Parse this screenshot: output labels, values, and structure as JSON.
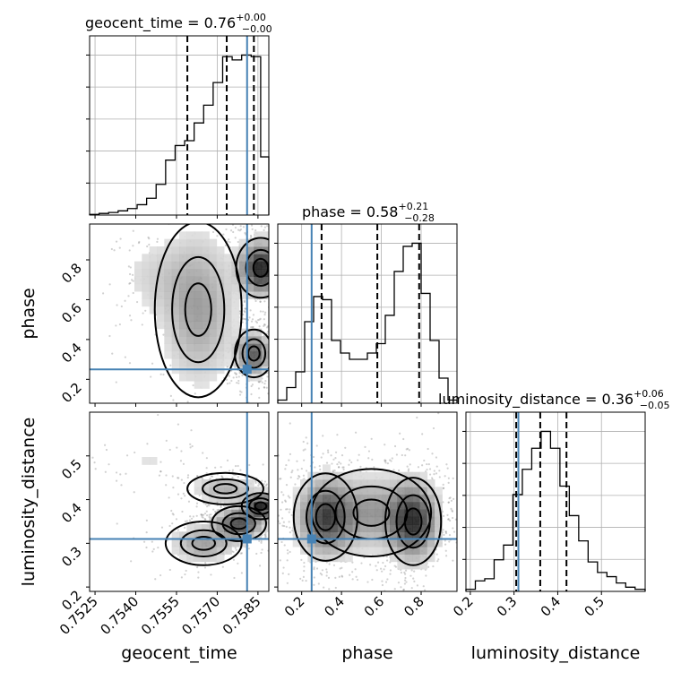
{
  "chart_data": {
    "type": "corner",
    "parameters": [
      "geocent_time",
      "phase",
      "luminosity_distance"
    ],
    "truth": {
      "geocent_time": 0.7581,
      "phase": 0.25,
      "luminosity_distance": 0.31
    },
    "titles": [
      {
        "param": "geocent_time",
        "name": "geocent_time",
        "median": "0.76",
        "plus": "+0.00",
        "minus": "−0.00"
      },
      {
        "param": "phase",
        "name": "phase",
        "median": "0.58",
        "plus": "+0.21",
        "minus": "−0.28"
      },
      {
        "param": "luminosity_distance",
        "name": "luminosity_distance",
        "median": "0.36",
        "plus": "+0.06",
        "minus": "−0.05"
      }
    ],
    "axes": {
      "geocent_time": {
        "range": [
          0.7523,
          0.7589
        ],
        "ticks": [
          0.7525,
          0.754,
          0.7555,
          0.757,
          0.7585
        ],
        "tick_labels": [
          "0.7525",
          "0.7540",
          "0.7555",
          "0.7570",
          "0.7585"
        ],
        "label": "geocent_time"
      },
      "phase": {
        "range": [
          0.08,
          0.98
        ],
        "ticks": [
          0.2,
          0.4,
          0.6,
          0.8
        ],
        "tick_labels": [
          "0.2",
          "0.4",
          "0.6",
          "0.8"
        ],
        "label": "phase"
      },
      "luminosity_distance": {
        "range": [
          0.19,
          0.6
        ],
        "ticks": [
          0.2,
          0.3,
          0.4,
          0.5
        ],
        "tick_labels": [
          "0.2",
          "0.3",
          "0.4",
          "0.5"
        ],
        "label": "luminosity_distance"
      }
    },
    "histograms": {
      "geocent_time": {
        "edges": [
          0.7523,
          0.75265,
          0.753,
          0.75335,
          0.7537,
          0.75405,
          0.7544,
          0.75475,
          0.7551,
          0.75545,
          0.7558,
          0.75615,
          0.7565,
          0.75685,
          0.7572,
          0.75755,
          0.7579,
          0.75825,
          0.7586,
          0.7589
        ],
        "counts": [
          0.2,
          0.5,
          0.8,
          1.3,
          2.0,
          3.2,
          5.2,
          9.5,
          17.0,
          21.5,
          23.0,
          28.5,
          34.0,
          41.0,
          49.0,
          48.0,
          49.5,
          49.0,
          18.0
        ],
        "quantiles": [
          0.7559,
          0.75735,
          0.75835
        ]
      },
      "phase": {
        "edges": [
          0.08,
          0.125,
          0.17,
          0.215,
          0.26,
          0.305,
          0.35,
          0.395,
          0.44,
          0.485,
          0.53,
          0.575,
          0.62,
          0.665,
          0.71,
          0.755,
          0.8,
          0.845,
          0.89,
          0.935,
          0.98
        ],
        "counts": [
          1.0,
          5.0,
          10.0,
          26.0,
          34.0,
          33.0,
          20.0,
          16.0,
          14.0,
          14.0,
          16.0,
          19.0,
          28.0,
          42.0,
          50.0,
          51.0,
          35.0,
          20.0,
          8.0,
          1.0
        ],
        "quantiles": [
          0.3,
          0.58,
          0.79
        ]
      },
      "luminosity_distance": {
        "edges": [
          0.19,
          0.2115,
          0.233,
          0.2545,
          0.276,
          0.2975,
          0.319,
          0.3405,
          0.362,
          0.3835,
          0.405,
          0.4265,
          0.448,
          0.4695,
          0.491,
          0.5125,
          0.534,
          0.5555,
          0.577,
          0.6
        ],
        "counts": [
          0.5,
          2.5,
          3.0,
          7.5,
          11.0,
          23.0,
          29.0,
          34.0,
          38.0,
          34.0,
          25.0,
          18.0,
          12.0,
          7.0,
          4.5,
          3.5,
          2.0,
          1.0,
          0.5
        ],
        "quantiles": [
          0.305,
          0.36,
          0.42
        ]
      }
    },
    "density_modes": {
      "phase_vs_geocent_time": [
        {
          "x": 0.7586,
          "y": 0.76,
          "sx": 0.00045,
          "sy": 0.075,
          "w": 1.0
        },
        {
          "x": 0.75835,
          "y": 0.33,
          "sx": 0.00035,
          "sy": 0.06,
          "w": 0.7
        },
        {
          "x": 0.7563,
          "y": 0.55,
          "sx": 0.0008,
          "sy": 0.22,
          "w": 0.35
        },
        {
          "x": 0.7548,
          "y": 0.72,
          "sx": 0.001,
          "sy": 0.12,
          "w": 0.12
        }
      ],
      "luminosity_distance_vs_geocent_time": [
        {
          "x": 0.7586,
          "y": 0.385,
          "sx": 0.00035,
          "sy": 0.015,
          "w": 1.0
        },
        {
          "x": 0.7578,
          "y": 0.345,
          "sx": 0.0005,
          "sy": 0.02,
          "w": 0.8
        },
        {
          "x": 0.7565,
          "y": 0.3,
          "sx": 0.0007,
          "sy": 0.025,
          "w": 0.35
        },
        {
          "x": 0.7573,
          "y": 0.425,
          "sx": 0.0007,
          "sy": 0.018,
          "w": 0.3
        },
        {
          "x": 0.7545,
          "y": 0.49,
          "sx": 0.0012,
          "sy": 0.03,
          "w": 0.08
        }
      ],
      "luminosity_distance_vs_phase": [
        {
          "x": 0.32,
          "y": 0.36,
          "sx": 0.08,
          "sy": 0.05,
          "w": 0.9
        },
        {
          "x": 0.76,
          "y": 0.35,
          "sx": 0.07,
          "sy": 0.05,
          "w": 1.0
        },
        {
          "x": 0.55,
          "y": 0.37,
          "sx": 0.15,
          "sy": 0.05,
          "w": 0.45
        }
      ]
    },
    "colors": {
      "truth": "#4682b4",
      "contour": "#000000",
      "scatter": "#7a7a7a"
    }
  }
}
